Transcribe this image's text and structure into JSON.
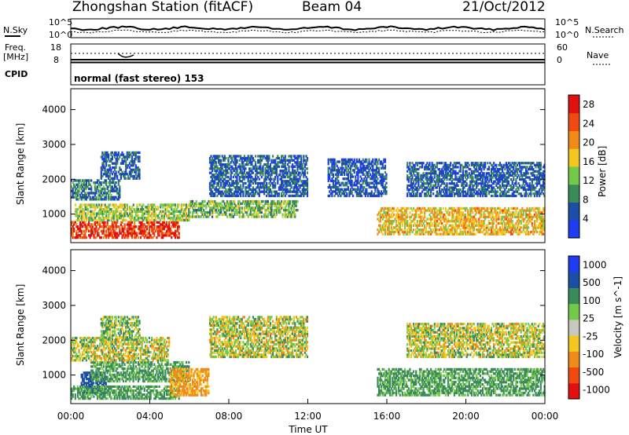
{
  "header": {
    "station": "Zhongshan Station (fitACF)",
    "beam": "Beam 04",
    "date": "21/Oct/2012"
  },
  "noise_panel": {
    "left_label": "N.Sky",
    "right_label": "N.Search",
    "left_ticks": [
      "10^5",
      "10^0"
    ],
    "right_ticks": [
      "10^5",
      "10^0"
    ]
  },
  "freq_panel": {
    "left_label_1": "Freq.",
    "left_label_2": "[MHz]",
    "right_label": "Nave",
    "left_ticks": [
      "18",
      "8"
    ],
    "right_ticks": [
      "60",
      "0"
    ]
  },
  "cpid": {
    "label": "CPID",
    "mode_text": "normal (fast stereo) 153"
  },
  "chart_data": [
    {
      "type": "heatmap",
      "name": "Power",
      "ylabel": "Slant Range [km]",
      "ylim": [
        180,
        4600
      ],
      "yticks": [
        1000,
        2000,
        3000,
        4000
      ],
      "xlim": [
        0,
        24
      ],
      "colorbar_label": "Power [dB]",
      "colorbar_ticks": [
        4,
        8,
        12,
        16,
        20,
        24,
        28
      ],
      "colorbar_range": [
        0,
        30
      ],
      "colors": [
        "#1f3cf0",
        "#1c4ea8",
        "#3a8a5a",
        "#74c84a",
        "#f2c820",
        "#f08a18",
        "#f04a10",
        "#e01010"
      ],
      "echo_regions": [
        {
          "t0": 0.0,
          "t1": 5.5,
          "r0": 300,
          "r1": 800,
          "level": 26
        },
        {
          "t0": 0.2,
          "t1": 6.0,
          "r0": 800,
          "r1": 1300,
          "level": 14
        },
        {
          "t0": 0.0,
          "t1": 2.5,
          "r0": 1400,
          "r1": 2000,
          "level": 8
        },
        {
          "t0": 1.5,
          "t1": 3.5,
          "r0": 2000,
          "r1": 2800,
          "level": 6
        },
        {
          "t0": 6.0,
          "t1": 11.5,
          "r0": 900,
          "r1": 1400,
          "level": 12
        },
        {
          "t0": 7.0,
          "t1": 12.0,
          "r0": 1500,
          "r1": 2700,
          "level": 6
        },
        {
          "t0": 13.0,
          "t1": 16.0,
          "r0": 1500,
          "r1": 2600,
          "level": 5
        },
        {
          "t0": 15.5,
          "t1": 24.0,
          "r0": 400,
          "r1": 1200,
          "level": 18
        },
        {
          "t0": 17.0,
          "t1": 24.0,
          "r0": 1500,
          "r1": 2500,
          "level": 6
        }
      ]
    },
    {
      "type": "heatmap",
      "name": "Velocity",
      "ylabel": "Slant Range [km]",
      "ylim": [
        180,
        4600
      ],
      "yticks": [
        1000,
        2000,
        3000,
        4000
      ],
      "xlim": [
        0,
        24
      ],
      "xticks": [
        "00:00",
        "04:00",
        "08:00",
        "12:00",
        "16:00",
        "20:00",
        "00:00"
      ],
      "xlabel": "Time UT",
      "colorbar_label": "Velocity [m s^-1]",
      "colorbar_ticks": [
        "1000",
        "500",
        "100",
        "25",
        "-25",
        "-100",
        "-500",
        "-1000"
      ],
      "colors": [
        "#1f3cf0",
        "#1c4ea8",
        "#3a8a5a",
        "#74c84a",
        "#c8c8c0",
        "#f2c820",
        "#f08a18",
        "#f04a10",
        "#e01010"
      ],
      "echo_regions": [
        {
          "t0": 0.5,
          "t1": 1.8,
          "r0": 450,
          "r1": 1100,
          "level": 500
        },
        {
          "t0": 0.0,
          "t1": 5.5,
          "r0": 300,
          "r1": 700,
          "level": 100
        },
        {
          "t0": 1.0,
          "t1": 6.0,
          "r0": 800,
          "r1": 1400,
          "level": 100
        },
        {
          "t0": 5.0,
          "t1": 7.0,
          "r0": 400,
          "r1": 1200,
          "level": -100
        },
        {
          "t0": 0.0,
          "t1": 5.0,
          "r0": 1400,
          "r1": 2100,
          "level": 0
        },
        {
          "t0": 1.5,
          "t1": 3.5,
          "r0": 2000,
          "r1": 2700,
          "level": 50
        },
        {
          "t0": 7.0,
          "t1": 12.0,
          "r0": 1500,
          "r1": 2700,
          "level": 0
        },
        {
          "t0": 15.5,
          "t1": 24.0,
          "r0": 400,
          "r1": 1200,
          "level": 100
        },
        {
          "t0": 17.0,
          "t1": 24.0,
          "r0": 1500,
          "r1": 2500,
          "level": 0
        }
      ]
    }
  ]
}
